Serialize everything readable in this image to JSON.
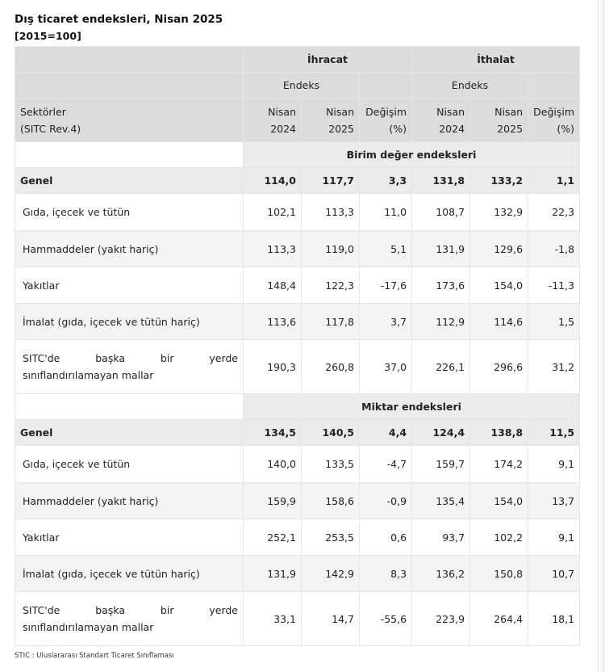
{
  "title": "Dış ticaret endeksleri, Nisan 2025",
  "subtitle": "[2015=100]",
  "header": {
    "group_export": "İhracat",
    "group_import": "İthalat",
    "endeks": "Endeks",
    "sector_line1": "Sektörler",
    "sector_line2": "(SITC Rev.4)",
    "col_prev_line1": "Nisan",
    "col_prev_line2": "2024",
    "col_curr_line1": "Nisan",
    "col_curr_line2": "2025",
    "col_change_line1": "Değişim",
    "col_change_line2": "(%)"
  },
  "sections": [
    {
      "title": "Birim değer endeksleri",
      "rows": [
        {
          "label": "Genel",
          "values": [
            "114,0",
            "117,7",
            "3,3",
            "131,8",
            "133,2",
            "1,1"
          ]
        },
        {
          "label": "Gıda, içecek ve tütün",
          "values": [
            "102,1",
            "113,3",
            "11,0",
            "108,7",
            "132,9",
            "22,3"
          ]
        },
        {
          "label": "Hammaddeler (yakıt hariç)",
          "values": [
            "113,3",
            "119,0",
            "5,1",
            "131,9",
            "129,6",
            "-1,8"
          ]
        },
        {
          "label": "Yakıtlar",
          "values": [
            "148,4",
            "122,3",
            "-17,6",
            "173,6",
            "154,0",
            "-11,3"
          ]
        },
        {
          "label": "İmalat (gıda, içecek ve tütün hariç)",
          "values": [
            "113,6",
            "117,8",
            "3,7",
            "112,9",
            "114,6",
            "1,5"
          ]
        },
        {
          "label_line1": "SITC'de başka bir yerde",
          "label_line2": "sınıflandırılamayan mallar",
          "values": [
            "190,3",
            "260,8",
            "37,0",
            "226,1",
            "296,6",
            "31,2"
          ]
        }
      ]
    },
    {
      "title": "Miktar endeksleri",
      "rows": [
        {
          "label": "Genel",
          "values": [
            "134,5",
            "140,5",
            "4,4",
            "124,4",
            "138,8",
            "11,5"
          ]
        },
        {
          "label": "Gıda, içecek ve tütün",
          "values": [
            "140,0",
            "133,5",
            "-4,7",
            "159,7",
            "174,2",
            "9,1"
          ]
        },
        {
          "label": "Hammaddeler (yakıt hariç)",
          "values": [
            "159,9",
            "158,6",
            "-0,9",
            "135,4",
            "154,0",
            "13,7"
          ]
        },
        {
          "label": "Yakıtlar",
          "values": [
            "252,1",
            "253,5",
            "0,6",
            "93,7",
            "102,2",
            "9,1"
          ]
        },
        {
          "label": "İmalat (gıda, içecek ve tütün hariç)",
          "values": [
            "131,9",
            "142,9",
            "8,3",
            "136,2",
            "150,8",
            "10,7"
          ]
        },
        {
          "label_line1": "SITC'de başka bir yerde",
          "label_line2": "sınıflandırılamayan mallar",
          "values": [
            "33,1",
            "14,7",
            "-55,6",
            "223,9",
            "264,4",
            "18,1"
          ]
        }
      ]
    }
  ],
  "footnote": "STIC : Uluslararası Standart Ticaret Sınıflaması"
}
